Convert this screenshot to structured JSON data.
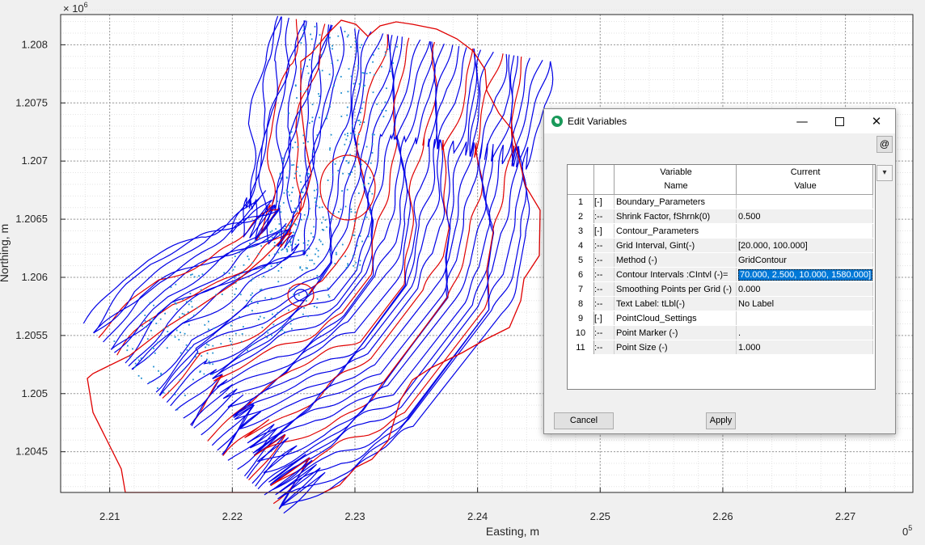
{
  "chart_data": {
    "type": "contour",
    "title": "",
    "xlabel": "Easting, m",
    "ylabel": "Northing, m",
    "x_exponent": "0",
    "x_exponent_prefix": "5",
    "y_exponent": "6",
    "y_exponent_prefix": "× 10",
    "x_ticks": [
      "2.21",
      "2.22",
      "2.23",
      "2.24",
      "2.25",
      "2.26",
      "2.27"
    ],
    "y_ticks": [
      "1.208",
      "1.2075",
      "1.207",
      "1.2065",
      "1.206",
      "1.2055",
      "1.205",
      "1.2045"
    ],
    "xlim": [
      2.206,
      2.2755
    ],
    "ylim": [
      1.20415,
      1.20826
    ],
    "grid": true,
    "minor_grid": true,
    "colors": {
      "contour_major": "#e00000",
      "contour_minor": "#0000e6",
      "points": "#1f8fd0"
    }
  },
  "dialog": {
    "title": "Edit Variables",
    "at_label": "@",
    "dropdown_glyph": "▾",
    "headers": {
      "col1_line1": "Variable",
      "col1_line2": "Name",
      "col2_line1": "Current",
      "col2_line2": "Value"
    },
    "rows": [
      {
        "num": "1",
        "tree": "[-]",
        "name": "Boundary_Parameters",
        "value": ""
      },
      {
        "num": "2",
        "tree": ":--",
        "name": "Shrink Factor, fShrnk(0)",
        "value": "0.500"
      },
      {
        "num": "3",
        "tree": "[-]",
        "name": "Contour_Parameters",
        "value": ""
      },
      {
        "num": "4",
        "tree": ":--",
        "name": "Grid Interval, Gint(-)",
        "value": "[20.000, 100.000]"
      },
      {
        "num": "5",
        "tree": ":--",
        "name": "Method (-)",
        "value": "GridContour"
      },
      {
        "num": "6",
        "tree": ":--",
        "name": "Contour Intervals :CIntvl (-)=",
        "value": "70.000, 2.500, 10.000, 1580.000]",
        "selected": true
      },
      {
        "num": "7",
        "tree": ":--",
        "name": "Smoothing Points per Grid (-)",
        "value": "0.000"
      },
      {
        "num": "8",
        "tree": ":--",
        "name": "Text Label: tLbl(-)",
        "value": "No Label"
      },
      {
        "num": "9",
        "tree": "[-]",
        "name": "PointCloud_Settings",
        "value": ""
      },
      {
        "num": "10",
        "tree": ":--",
        "name": "Point Marker (-)",
        "value": "."
      },
      {
        "num": "11",
        "tree": ":--",
        "name": "Point Size (-)",
        "value": "1.000"
      }
    ],
    "cancel_label": "Cancel",
    "apply_label": "Apply"
  }
}
